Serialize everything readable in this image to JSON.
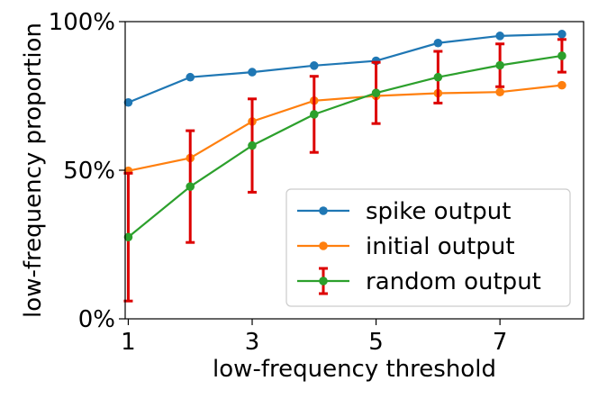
{
  "chart_data": {
    "type": "line",
    "xlabel": "low-frequency threshold",
    "ylabel": "low-frequency proportion",
    "xlim": [
      0.95,
      8.35
    ],
    "ylim": [
      0,
      100
    ],
    "x": [
      1,
      2,
      3,
      4,
      5,
      6,
      7,
      8
    ],
    "xticks": [
      {
        "value": 1,
        "label": "1"
      },
      {
        "value": 3,
        "label": "3"
      },
      {
        "value": 5,
        "label": "5"
      },
      {
        "value": 7,
        "label": "7"
      }
    ],
    "yticks": [
      {
        "value": 0,
        "label": "0%"
      },
      {
        "value": 50,
        "label": "50%"
      },
      {
        "value": 100,
        "label": "100%"
      }
    ],
    "grid": false,
    "legend": {
      "position": "bottom-right"
    },
    "series": [
      {
        "name": "spike output",
        "color": "#1f77b4",
        "values": [
          72.8,
          81.3,
          83.0,
          85.2,
          86.8,
          92.8,
          95.2,
          95.8
        ]
      },
      {
        "name": "initial output",
        "color": "#ff7f0e",
        "values": [
          49.8,
          54.1,
          66.4,
          73.4,
          75.0,
          75.9,
          76.3,
          78.6
        ]
      },
      {
        "name": "random output",
        "color": "#2ca02c",
        "values": [
          27.5,
          44.5,
          58.3,
          68.8,
          76.0,
          81.3,
          85.3,
          88.5
        ],
        "error": [
          21.5,
          18.8,
          15.7,
          12.8,
          10.3,
          8.7,
          7.2,
          5.5
        ],
        "error_color": "#dd0000"
      }
    ]
  }
}
